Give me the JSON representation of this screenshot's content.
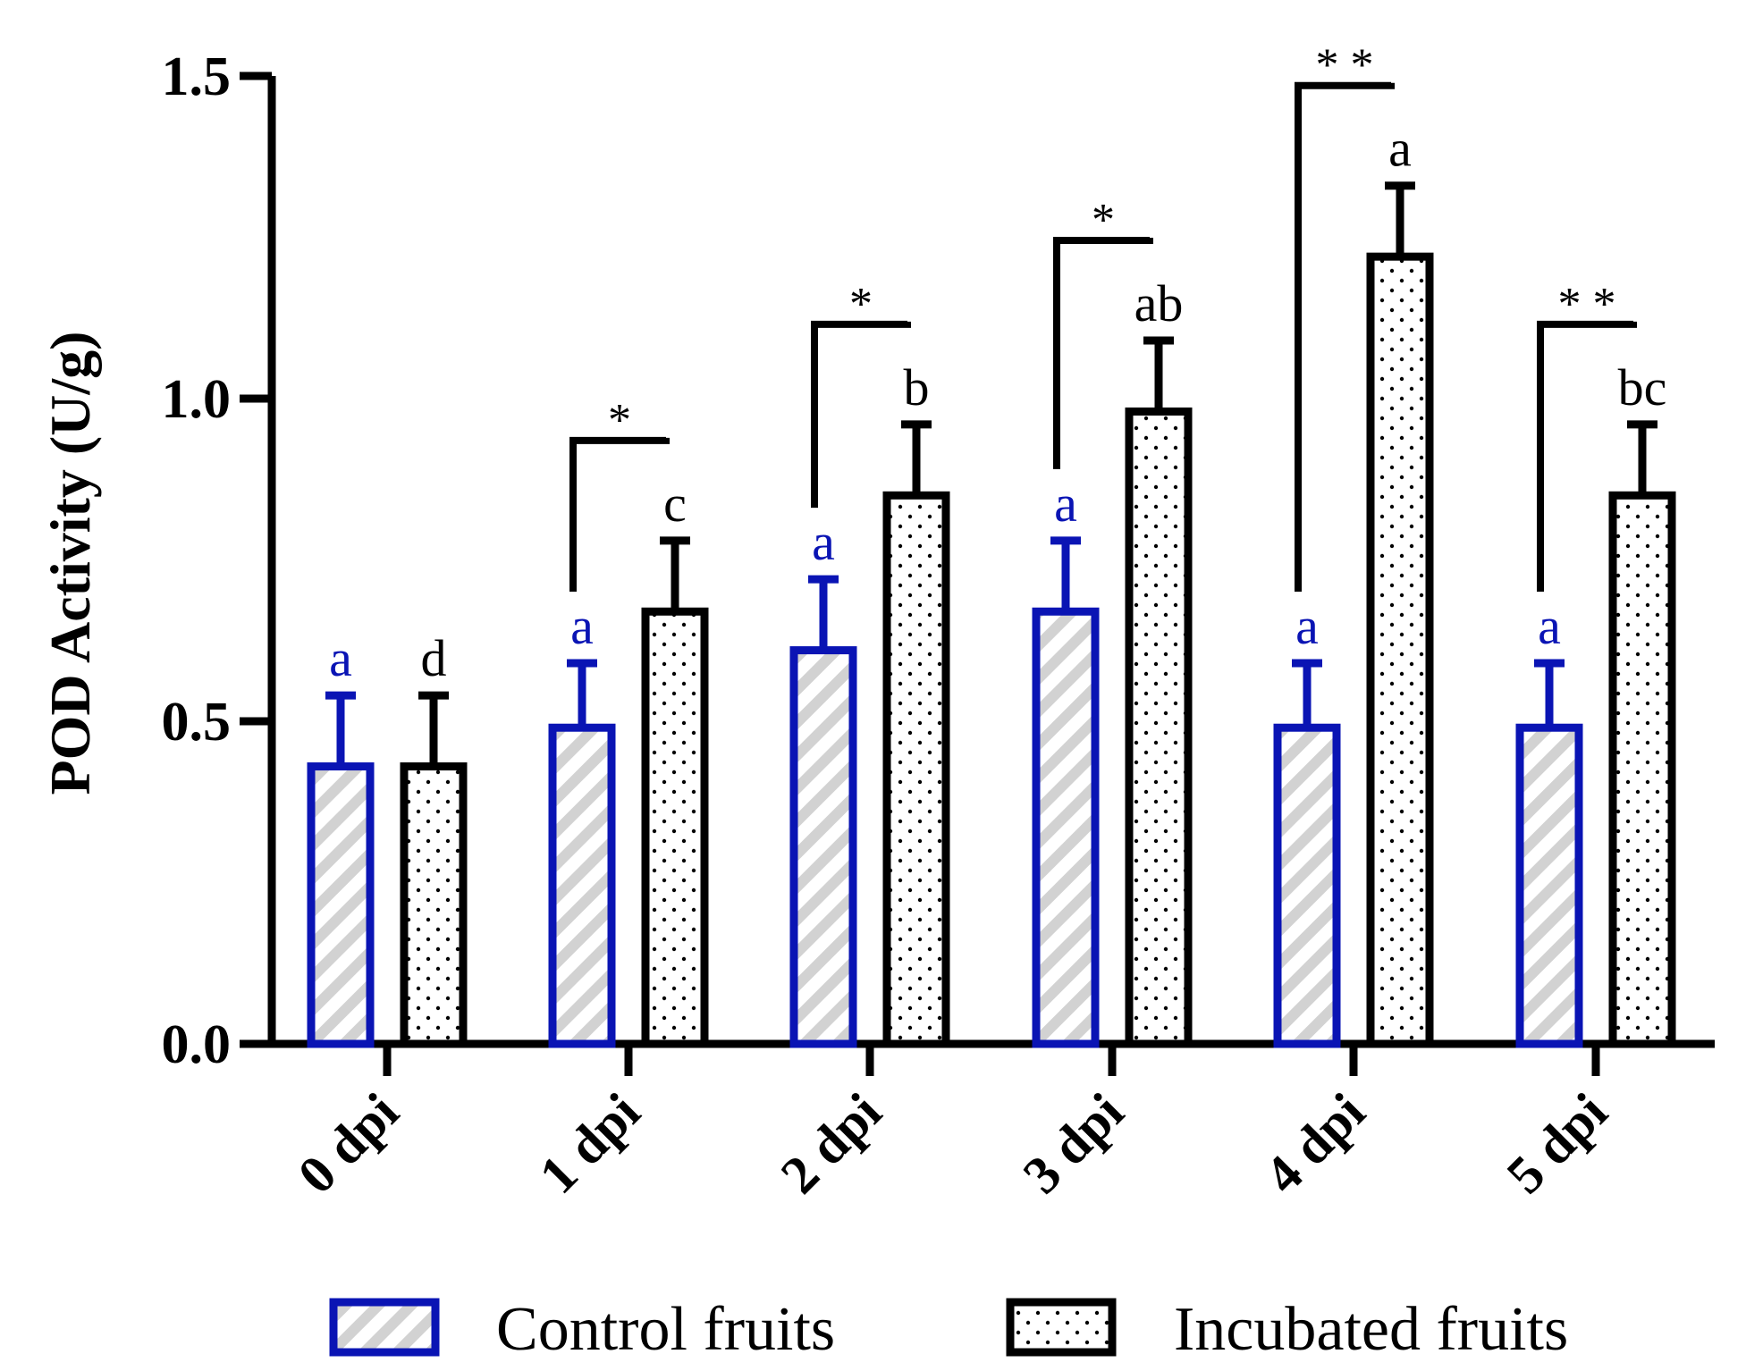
{
  "chart_data": {
    "type": "bar",
    "title": "",
    "xlabel": "",
    "ylabel": "POD Activity (U/g)",
    "ylim": [
      0,
      1.5
    ],
    "yticks": [
      "0.0",
      "0.5",
      "1.0",
      "1.5"
    ],
    "categories": [
      "0 dpi",
      "1 dpi",
      "2 dpi",
      "3 dpi",
      "4 dpi",
      "5 dpi"
    ],
    "series": [
      {
        "name": "Control fruits",
        "values": [
          0.43,
          0.49,
          0.61,
          0.67,
          0.49,
          0.49
        ],
        "errors": [
          0.11,
          0.1,
          0.11,
          0.11,
          0.1,
          0.1
        ],
        "letters": [
          "a",
          "a",
          "a",
          "a",
          "a",
          "a"
        ],
        "color": "#0a14b4",
        "pattern": "hatched"
      },
      {
        "name": "Incubated fruits",
        "values": [
          0.43,
          0.67,
          0.85,
          0.98,
          1.22,
          0.85
        ],
        "errors": [
          0.11,
          0.11,
          0.11,
          0.11,
          0.11,
          0.11
        ],
        "letters": [
          "d",
          "c",
          "b",
          "ab",
          "a",
          "bc"
        ],
        "color": "#000000",
        "pattern": "dotted"
      }
    ],
    "significance": [
      "",
      "*",
      "*",
      "*",
      "* *",
      "* *"
    ],
    "legend_position": "bottom"
  }
}
